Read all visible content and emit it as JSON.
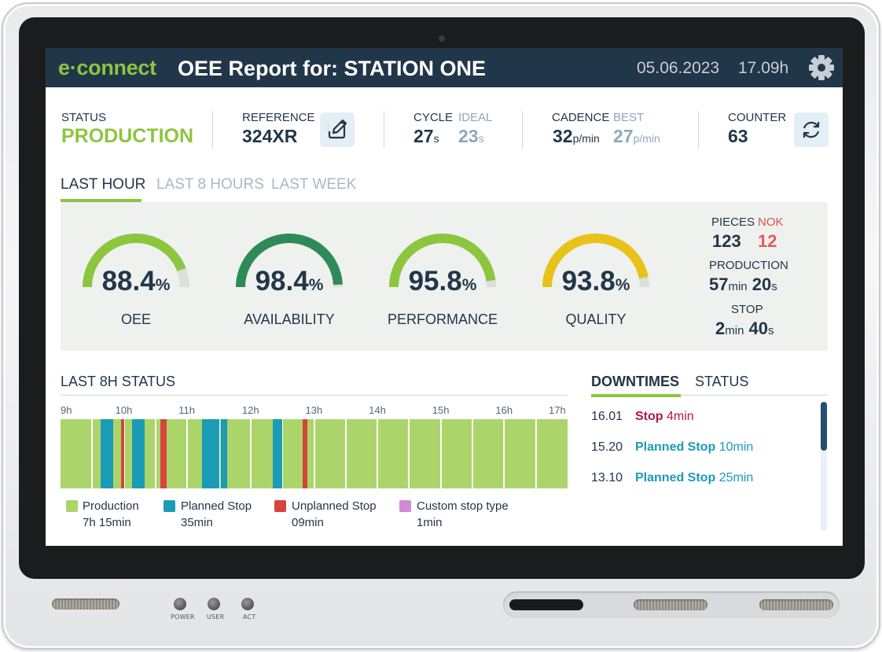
{
  "header": {
    "logo": "e·connect",
    "title": "OEE Report for: STATION ONE",
    "date": "05.06.2023",
    "time": "17.09h"
  },
  "info": {
    "status_label": "STATUS",
    "status_value": "PRODUCTION",
    "reference_label": "REFERENCE",
    "reference_value": "324XR",
    "cycle_label": "CYCLE",
    "cycle_value": "27",
    "cycle_unit": "s",
    "ideal_label": "IDEAL",
    "ideal_value": "23",
    "ideal_unit": "s",
    "cadence_label": "CADENCE",
    "cadence_value": "32",
    "cadence_unit": "p/min",
    "best_label": "BEST",
    "best_value": "27",
    "best_unit": "p/min",
    "counter_label": "COUNTER",
    "counter_value": "63"
  },
  "tabs": [
    {
      "label": "LAST HOUR",
      "active": true
    },
    {
      "label": "LAST 8 HOURS",
      "active": false
    },
    {
      "label": "LAST WEEK",
      "active": false
    }
  ],
  "gauges": [
    {
      "name": "oee",
      "value": "88.4",
      "fraction": 0.884,
      "label": "OEE",
      "color": "#8cc63f"
    },
    {
      "name": "availability",
      "value": "98.4",
      "fraction": 0.984,
      "label": "AVAILABILITY",
      "color": "#2e8b57"
    },
    {
      "name": "performance",
      "value": "95.8",
      "fraction": 0.958,
      "label": "PERFORMANCE",
      "color": "#8cc63f"
    },
    {
      "name": "quality",
      "value": "93.8",
      "fraction": 0.938,
      "label": "QUALITY",
      "color": "#e8c219"
    }
  ],
  "gauge_unit": "%",
  "gauge_track_color": "#dcdfdc",
  "summary": {
    "pieces_label": "PIECES",
    "nok_label": "NOK",
    "pieces_value": "123",
    "nok_value": "12",
    "production_label": "PRODUCTION",
    "production_min": "57",
    "production_sec": "20",
    "stop_label": "STOP",
    "stop_min": "2",
    "stop_sec": "40",
    "min_unit": "min",
    "sec_unit": "s"
  },
  "status_chart": {
    "title": "LAST 8H STATUS",
    "hours": [
      "9h",
      "10h",
      "11h",
      "12h",
      "13h",
      "14h",
      "15h",
      "16h",
      "17h"
    ],
    "segments": [
      {
        "type": "planned",
        "start": 9.63,
        "end": 9.83
      },
      {
        "type": "unplanned",
        "start": 9.95,
        "end": 10.01
      },
      {
        "type": "planned",
        "start": 10.13,
        "end": 10.33
      },
      {
        "type": "unplanned",
        "start": 10.58,
        "end": 10.68
      },
      {
        "type": "planned",
        "start": 11.23,
        "end": 11.5
      },
      {
        "type": "planned",
        "start": 11.53,
        "end": 11.63
      },
      {
        "type": "planned",
        "start": 12.35,
        "end": 12.5
      },
      {
        "type": "unplanned",
        "start": 12.82,
        "end": 12.9
      }
    ],
    "colors": {
      "production": "#abd56a",
      "planned": "#1b9bb5",
      "unplanned": "#d8433c",
      "custom": "#d08ad8"
    },
    "legend": [
      {
        "key": "production",
        "label": "Production",
        "duration": "7h 15min"
      },
      {
        "key": "planned",
        "label": "Planned Stop",
        "duration": "35min"
      },
      {
        "key": "unplanned",
        "label": "Unplanned Stop",
        "duration": "09min"
      },
      {
        "key": "custom",
        "label": "Custom stop type",
        "duration": "1min"
      }
    ]
  },
  "downtimes": {
    "tab_downtimes": "DOWNTIMES",
    "tab_status": "STATUS",
    "items": [
      {
        "time": "16.01",
        "type": "Stop",
        "duration": "4min",
        "color": "#b3174c"
      },
      {
        "time": "15.20",
        "type": "Planned Stop",
        "duration": "10min",
        "color": "#1b9bb5"
      },
      {
        "time": "13.10",
        "type": "Planned Stop",
        "duration": "25min",
        "color": "#1b9bb5"
      }
    ]
  },
  "device": {
    "power_label": "POWER",
    "user_label": "USER",
    "act_label": "ACT"
  }
}
